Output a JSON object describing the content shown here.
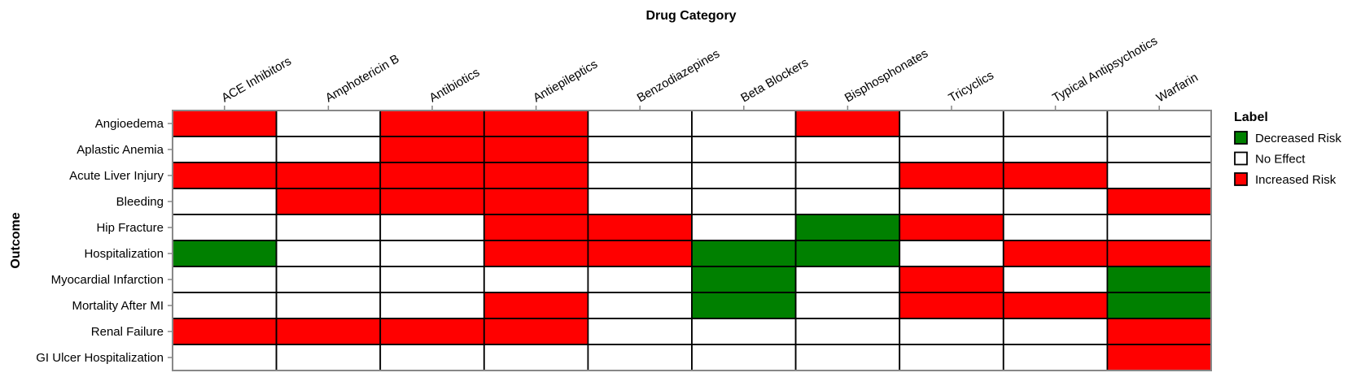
{
  "chart_data": {
    "type": "heatmap",
    "xlabel": "Drug Category",
    "ylabel": "Outcome",
    "x_categories": [
      "ACE Inhibitors",
      "Amphotericin B",
      "Antibiotics",
      "Antiepileptics",
      "Benzodiazepines",
      "Beta Blockers",
      "Bisphosphonates",
      "Tricyclics",
      "Typical Antipsychotics",
      "Warfarin"
    ],
    "y_categories": [
      "Angioedema",
      "Aplastic Anemia",
      "Acute Liver Injury",
      "Bleeding",
      "Hip Fracture",
      "Hospitalization",
      "Myocardial Infarction",
      "Mortality After MI",
      "Renal Failure",
      "GI Ulcer Hospitalization"
    ],
    "cells": [
      [
        "Increased Risk",
        "No Effect",
        "Increased Risk",
        "Increased Risk",
        "No Effect",
        "No Effect",
        "Increased Risk",
        "No Effect",
        "No Effect",
        "No Effect"
      ],
      [
        "No Effect",
        "No Effect",
        "Increased Risk",
        "Increased Risk",
        "No Effect",
        "No Effect",
        "No Effect",
        "No Effect",
        "No Effect",
        "No Effect"
      ],
      [
        "Increased Risk",
        "Increased Risk",
        "Increased Risk",
        "Increased Risk",
        "No Effect",
        "No Effect",
        "No Effect",
        "Increased Risk",
        "Increased Risk",
        "No Effect"
      ],
      [
        "No Effect",
        "Increased Risk",
        "Increased Risk",
        "Increased Risk",
        "No Effect",
        "No Effect",
        "No Effect",
        "No Effect",
        "No Effect",
        "Increased Risk"
      ],
      [
        "No Effect",
        "No Effect",
        "No Effect",
        "Increased Risk",
        "Increased Risk",
        "No Effect",
        "Decreased Risk",
        "Increased Risk",
        "No Effect",
        "No Effect"
      ],
      [
        "Decreased Risk",
        "No Effect",
        "No Effect",
        "Increased Risk",
        "Increased Risk",
        "Decreased Risk",
        "Decreased Risk",
        "No Effect",
        "Increased Risk",
        "Increased Risk"
      ],
      [
        "No Effect",
        "No Effect",
        "No Effect",
        "No Effect",
        "No Effect",
        "Decreased Risk",
        "No Effect",
        "Increased Risk",
        "No Effect",
        "Decreased Risk"
      ],
      [
        "No Effect",
        "No Effect",
        "No Effect",
        "Increased Risk",
        "No Effect",
        "Decreased Risk",
        "No Effect",
        "Increased Risk",
        "Increased Risk",
        "Decreased Risk"
      ],
      [
        "Increased Risk",
        "Increased Risk",
        "Increased Risk",
        "Increased Risk",
        "No Effect",
        "No Effect",
        "No Effect",
        "No Effect",
        "No Effect",
        "Increased Risk"
      ],
      [
        "No Effect",
        "No Effect",
        "No Effect",
        "No Effect",
        "No Effect",
        "No Effect",
        "No Effect",
        "No Effect",
        "No Effect",
        "Increased Risk"
      ]
    ],
    "legend": {
      "title": "Label",
      "placement": "right",
      "entries": [
        {
          "label": "Decreased Risk",
          "color": "#008000"
        },
        {
          "label": "No Effect",
          "color": "#ffffff"
        },
        {
          "label": "Increased Risk",
          "color": "#ff0000"
        }
      ]
    },
    "grid": true
  }
}
